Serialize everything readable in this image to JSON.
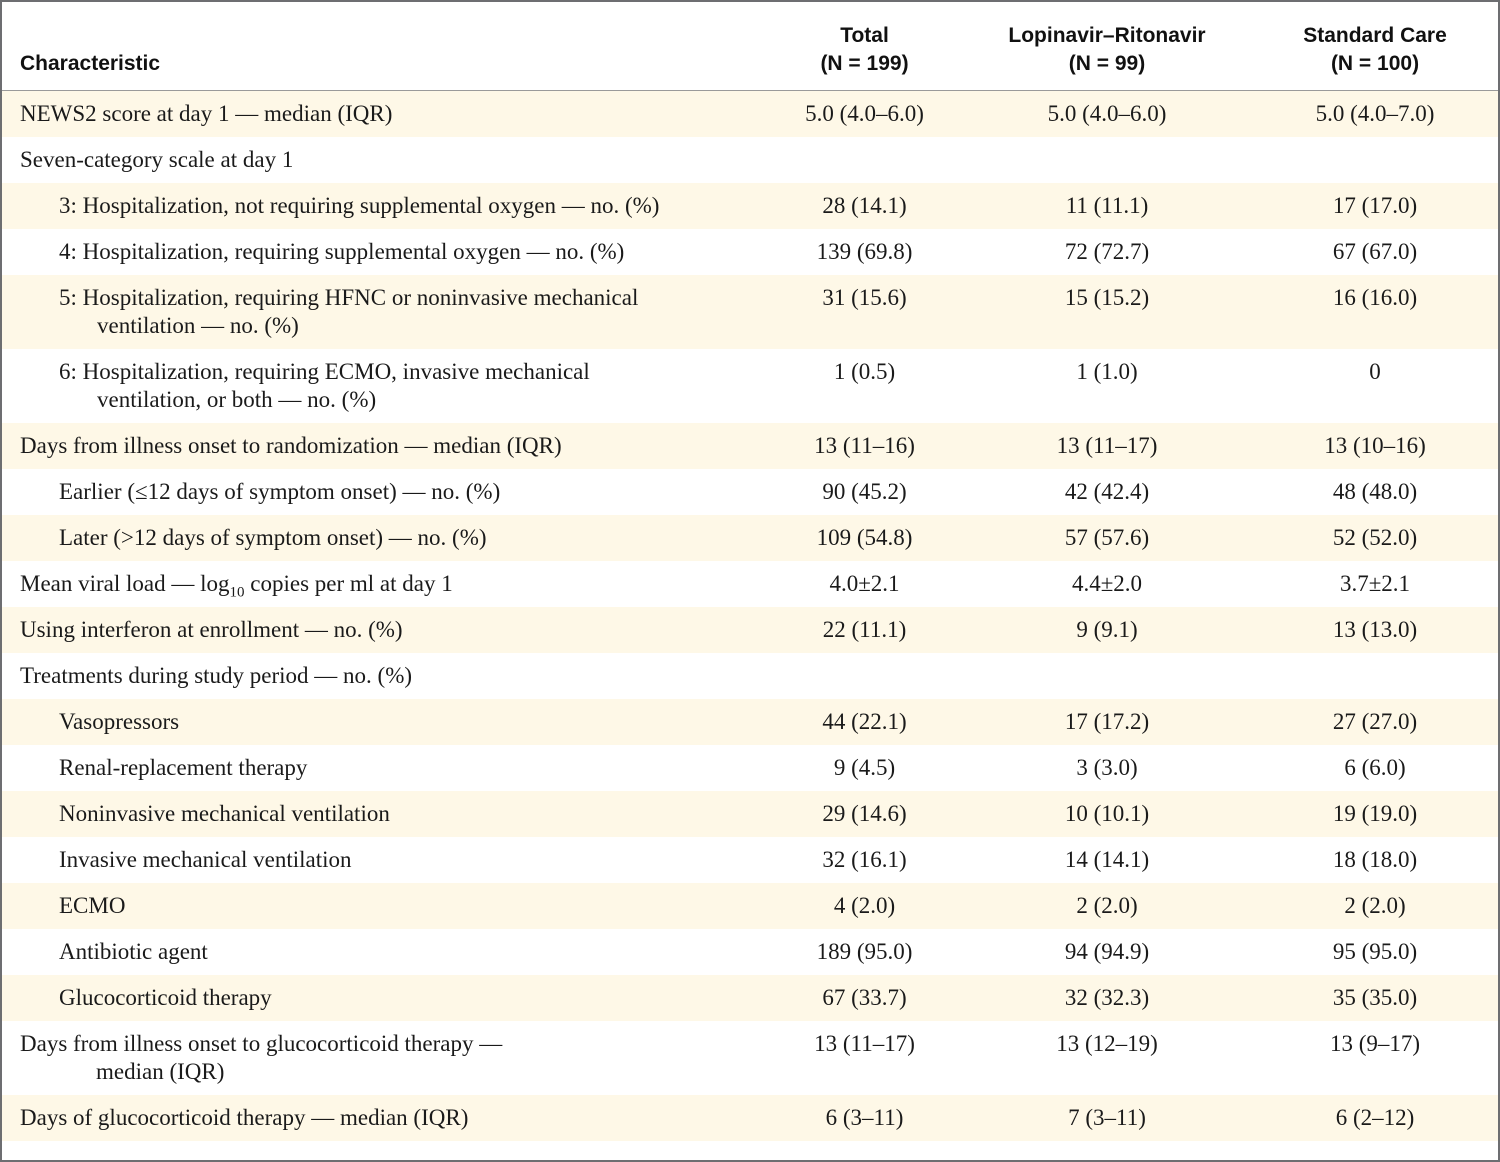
{
  "table": {
    "headers": {
      "characteristic": "Characteristic",
      "total_name": "Total",
      "total_n": "(N = 199)",
      "lr_name": "Lopinavir–Ritonavir",
      "lr_n": "(N = 99)",
      "sc_name": "Standard Care",
      "sc_n": "(N = 100)"
    },
    "rows": [
      {
        "label": "NEWS2 score at day 1 — median (IQR)",
        "total": "5.0 (4.0–6.0)",
        "lr": "5.0 (4.0–6.0)",
        "sc": "5.0 (4.0–7.0)"
      },
      {
        "label": "Seven-category scale at day 1",
        "total": "",
        "lr": "",
        "sc": ""
      },
      {
        "label": "3: Hospitalization, not requiring supplemental oxygen — no. (%)",
        "total": "28 (14.1)",
        "lr": "11 (11.1)",
        "sc": "17 (17.0)"
      },
      {
        "label": "4: Hospitalization, requiring supplemental oxygen — no. (%)",
        "total": "139 (69.8)",
        "lr": "72 (72.7)",
        "sc": "67 (67.0)"
      },
      {
        "label": "5: Hospitalization, requiring HFNC or noninvasive mechanical",
        "label_cont": "ventilation — no. (%)",
        "total": "31 (15.6)",
        "lr": "15 (15.2)",
        "sc": "16 (16.0)"
      },
      {
        "label": "6: Hospitalization, requiring ECMO, invasive mechanical",
        "label_cont": "ventilation, or both — no. (%)",
        "total": "1 (0.5)",
        "lr": "1 (1.0)",
        "sc": "0"
      },
      {
        "label": "Days from illness onset to randomization — median (IQR)",
        "total": "13 (11–16)",
        "lr": "13 (11–17)",
        "sc": "13 (10–16)"
      },
      {
        "label": "Earlier (≤12 days of symptom onset) — no. (%)",
        "total": "90 (45.2)",
        "lr": "42 (42.4)",
        "sc": "48 (48.0)"
      },
      {
        "label": "Later (>12 days of symptom onset) — no. (%)",
        "total": "109 (54.8)",
        "lr": "57 (57.6)",
        "sc": "52 (52.0)"
      },
      {
        "label_pre": "Mean viral load — log",
        "label_sub": "10",
        "label_post": " copies per ml at day 1",
        "total": "4.0±2.1",
        "lr": "4.4±2.0",
        "sc": "3.7±2.1"
      },
      {
        "label": "Using interferon at enrollment — no. (%)",
        "total": "22 (11.1)",
        "lr": "9 (9.1)",
        "sc": "13 (13.0)"
      },
      {
        "label": "Treatments during study period — no. (%)",
        "total": "",
        "lr": "",
        "sc": ""
      },
      {
        "label": "Vasopressors",
        "total": "44 (22.1)",
        "lr": "17 (17.2)",
        "sc": "27 (27.0)"
      },
      {
        "label": "Renal-replacement therapy",
        "total": "9 (4.5)",
        "lr": "3 (3.0)",
        "sc": "6 (6.0)"
      },
      {
        "label": "Noninvasive mechanical ventilation",
        "total": "29 (14.6)",
        "lr": "10 (10.1)",
        "sc": "19 (19.0)"
      },
      {
        "label": "Invasive mechanical ventilation",
        "total": "32 (16.1)",
        "lr": "14 (14.1)",
        "sc": "18 (18.0)"
      },
      {
        "label": "ECMO",
        "total": "4 (2.0)",
        "lr": "2 (2.0)",
        "sc": "2 (2.0)"
      },
      {
        "label": "Antibiotic agent",
        "total": "189 (95.0)",
        "lr": "94 (94.9)",
        "sc": "95 (95.0)"
      },
      {
        "label": "Glucocorticoid therapy",
        "total": "67 (33.7)",
        "lr": "32 (32.3)",
        "sc": "35 (35.0)"
      },
      {
        "label": "Days from illness onset to glucocorticoid therapy —",
        "label_cont": "median (IQR)",
        "total": "13 (11–17)",
        "lr": "13 (12–19)",
        "sc": "13 (9–17)"
      },
      {
        "label": "Days of glucocorticoid therapy — median (IQR)",
        "total": "6 (3–11)",
        "lr": "7 (3–11)",
        "sc": "6 (2–12)"
      }
    ]
  }
}
